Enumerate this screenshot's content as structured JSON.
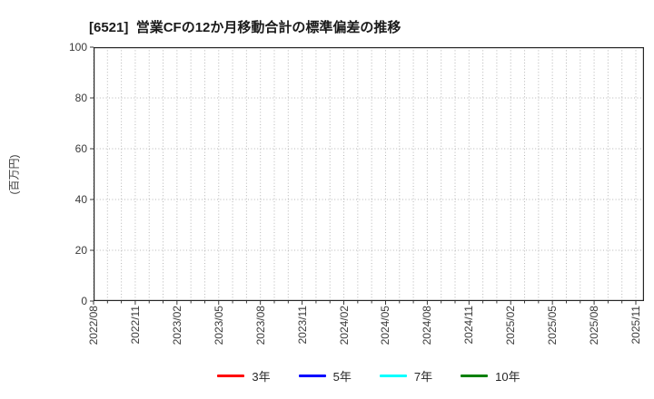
{
  "chart_data": {
    "type": "line",
    "title": "[6521]  営業CFの12か月移動合計の標準偏差の推移",
    "ylabel": "(百万円)",
    "ylim": [
      0,
      100
    ],
    "yticks": [
      0,
      20,
      40,
      60,
      80,
      100
    ],
    "x_tick_labels": [
      "2022/08",
      "2022/11",
      "2023/02",
      "2023/05",
      "2023/08",
      "2023/11",
      "2024/02",
      "2024/05",
      "2024/08",
      "2024/11",
      "2025/02",
      "2025/05",
      "2025/08",
      "2025/11"
    ],
    "x_minor_tick_interval": "monthly",
    "grid": "dotted",
    "legend_position": "bottom",
    "series": [
      {
        "name": "3年",
        "color": "#ff0000",
        "values": []
      },
      {
        "name": "5年",
        "color": "#0000ff",
        "values": []
      },
      {
        "name": "7年",
        "color": "#00ffff",
        "values": []
      },
      {
        "name": "10年",
        "color": "#008000",
        "values": []
      }
    ],
    "colors": {
      "axis": "#262626",
      "grid": "#b5b5b5",
      "tick_text": "#3a3a3a",
      "title_text": "#1a1a1a"
    }
  }
}
